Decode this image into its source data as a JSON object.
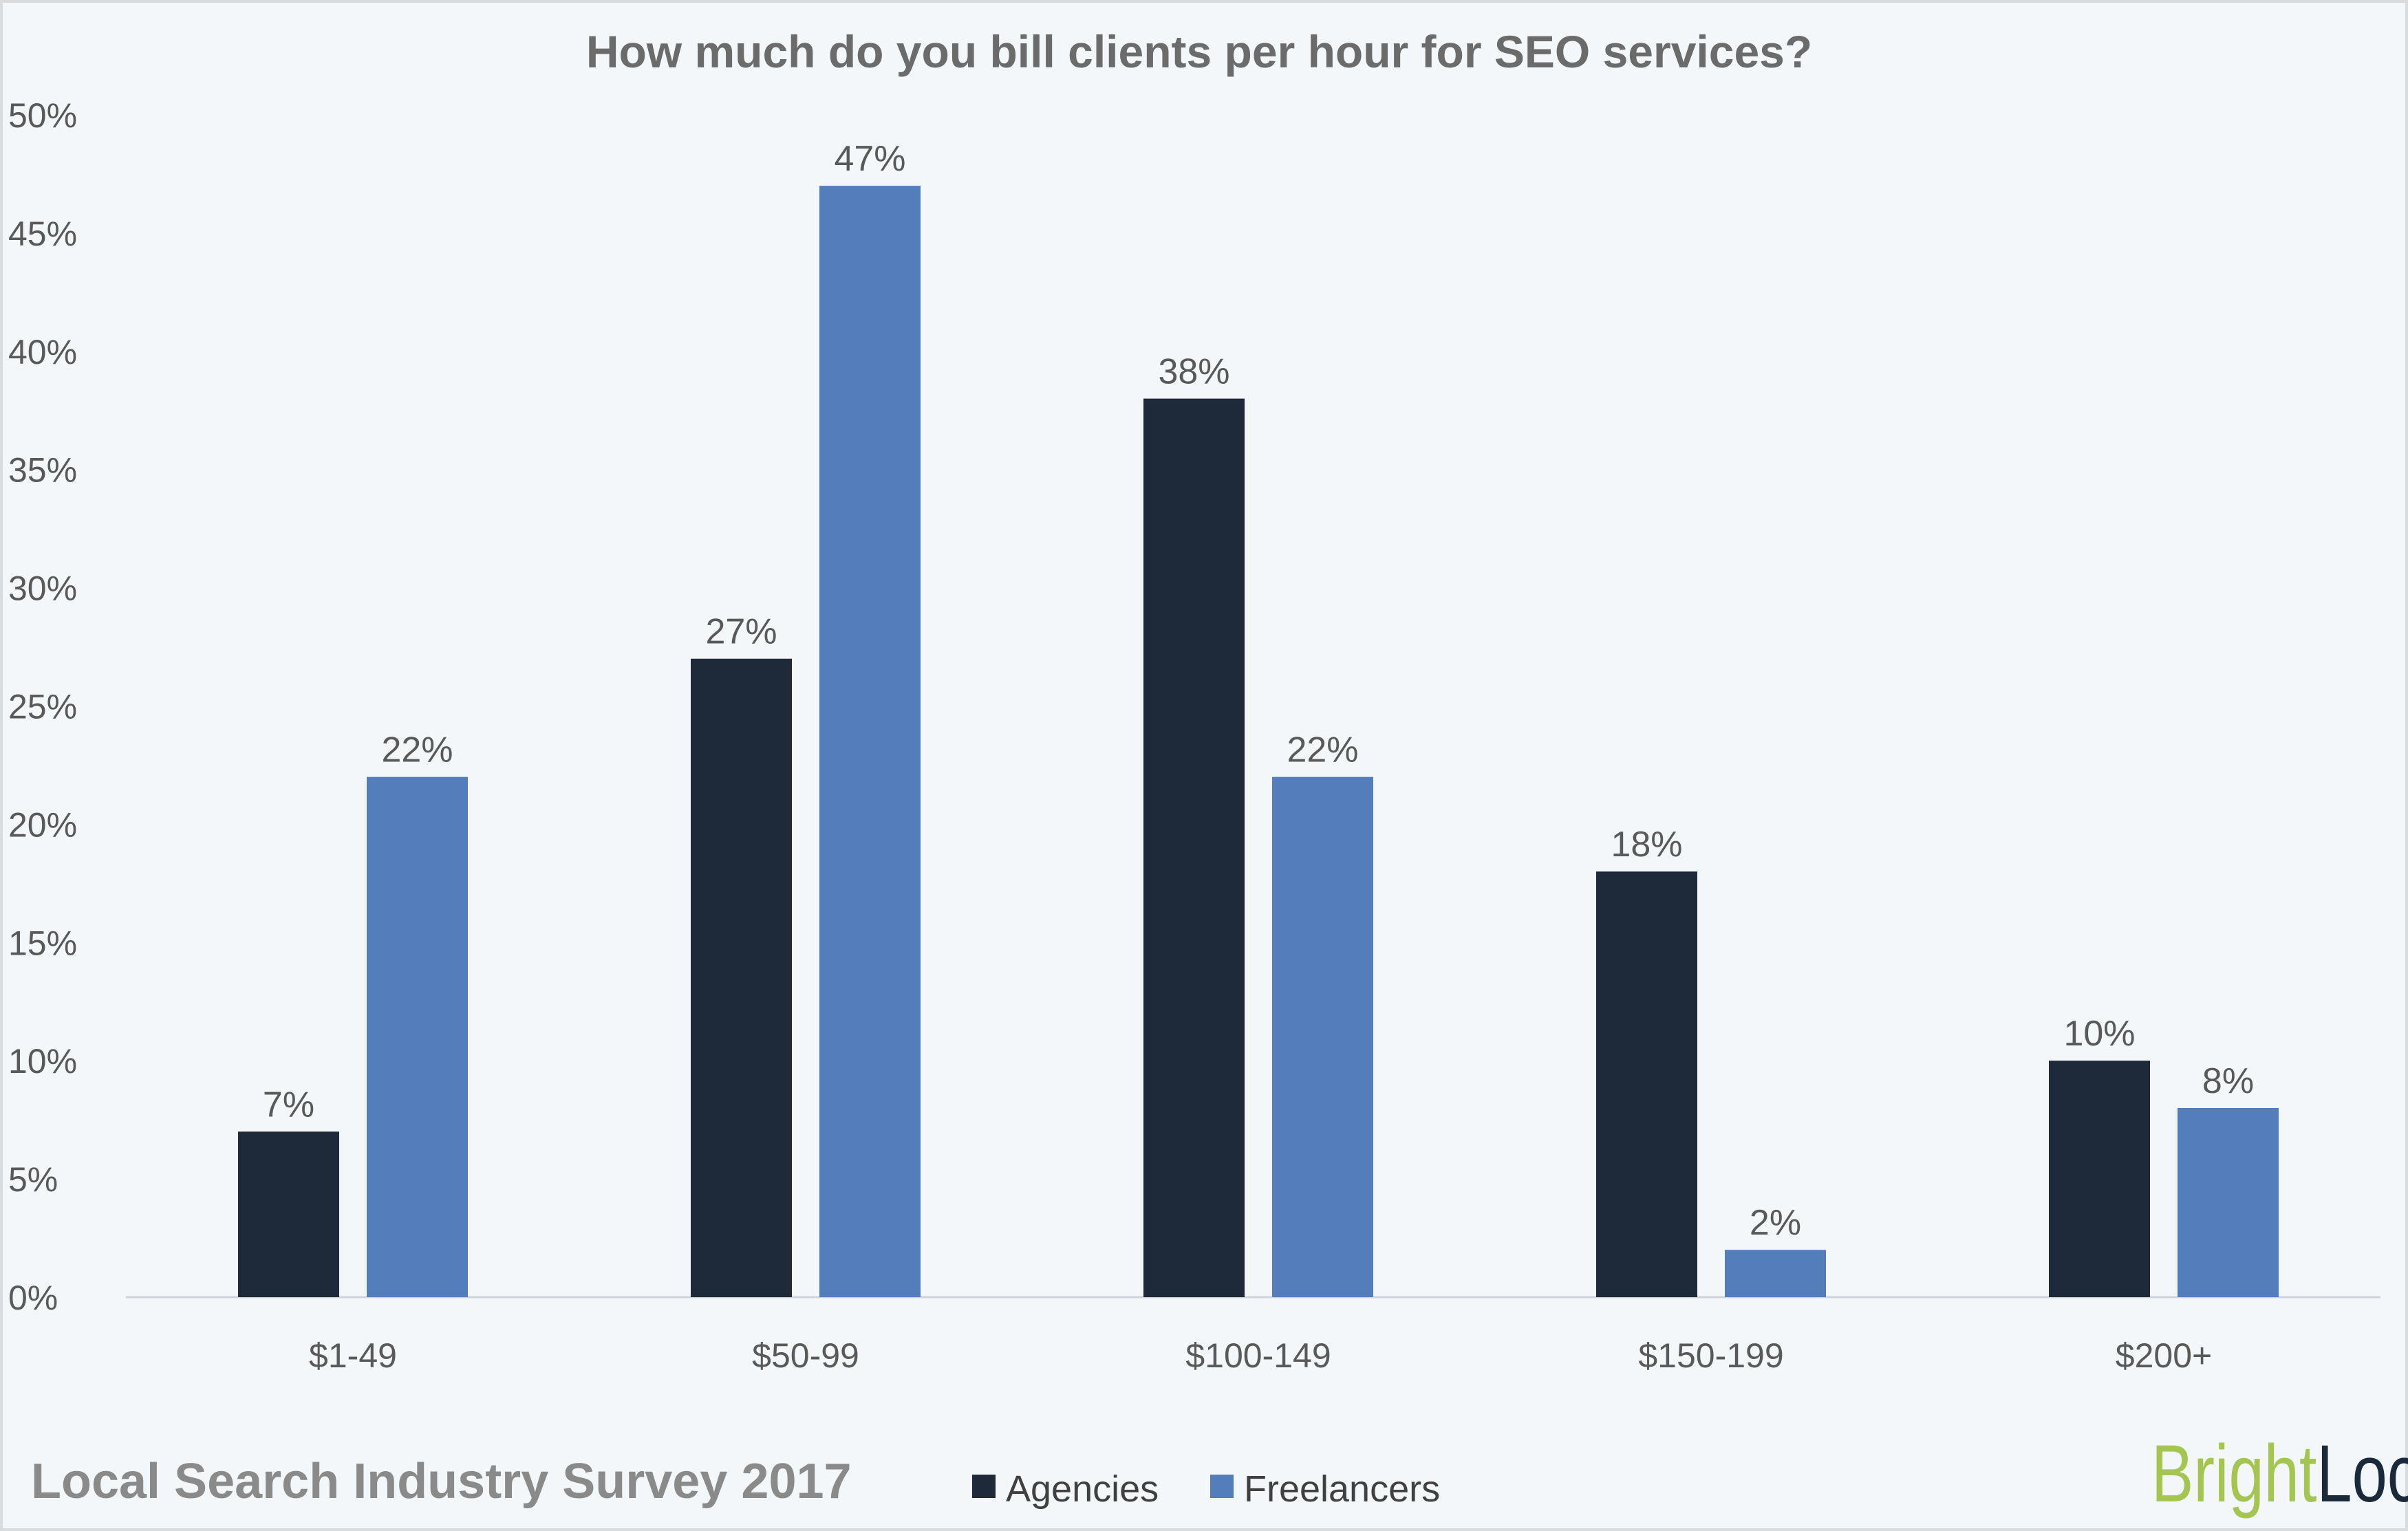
{
  "chart_data": {
    "type": "bar",
    "title": "How much do you bill clients per hour for SEO services?",
    "categories": [
      "$1-49",
      "$50-99",
      "$100-149",
      "$150-199",
      "$200+"
    ],
    "series": [
      {
        "name": "Agencies",
        "values": [
          7,
          27,
          38,
          18,
          10
        ],
        "labels": [
          "7%",
          "27%",
          "38%",
          "18%",
          "10%"
        ],
        "color": "#1e2a3a"
      },
      {
        "name": "Freelancers",
        "values": [
          22,
          47,
          22,
          2,
          8
        ],
        "labels": [
          "22%",
          "47%",
          "22%",
          "2%",
          "8%"
        ],
        "color": "#547dbb"
      }
    ],
    "yticks": [
      "0%",
      "5%",
      "10%",
      "15%",
      "20%",
      "25%",
      "30%",
      "35%",
      "40%",
      "45%",
      "50%"
    ],
    "ylim": [
      0,
      50
    ],
    "grid": false,
    "legend": "bottom",
    "xlabel": "",
    "ylabel": ""
  },
  "footer": {
    "source": "Local Search Industry Survey 2017"
  },
  "logo": {
    "text": "BrightLocal",
    "part1": "Bright",
    "part2": "Local",
    "color1": "#a5c553",
    "color2": "#1b2a3b"
  },
  "colors": {
    "background": "#f4f7fa",
    "text": "#595959"
  }
}
